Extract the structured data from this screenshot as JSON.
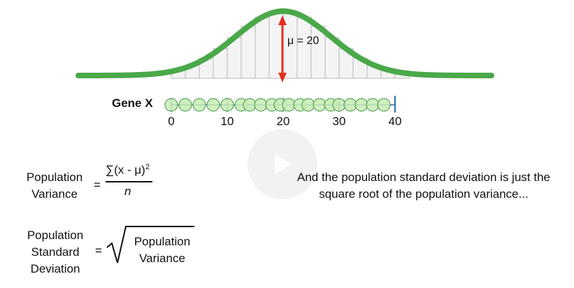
{
  "gene_label": "Gene X",
  "axis_ticks": [
    "0",
    "10",
    "20",
    "30",
    "40"
  ],
  "mean_label": "μ = 20",
  "formula_variance": {
    "label_lines": [
      "Population",
      "Variance"
    ],
    "equals": "=",
    "numerator": "∑(x - μ)",
    "numerator_power": "2",
    "denominator": "n"
  },
  "formula_sd": {
    "label_lines": [
      "Population",
      "Standard",
      "Deviation"
    ],
    "equals": "=",
    "radicand_lines": [
      "Population",
      "Variance"
    ]
  },
  "narration": "And the population standard deviation is just the square root of the population variance...",
  "colors": {
    "curve": "#4aa84a",
    "dot_fill": "#c8ecb4",
    "dot_stroke": "#5aa35a",
    "axis_tick": "#2a6fb5",
    "arrow": "#e0301e",
    "histogram_stroke": "#b8b8b8"
  },
  "data_points": [
    0,
    2.5,
    5,
    7.5,
    10,
    12.5,
    14,
    16,
    18,
    19.5,
    21,
    23,
    24.5,
    26.5,
    28.5,
    30,
    32,
    34,
    36,
    38
  ]
}
